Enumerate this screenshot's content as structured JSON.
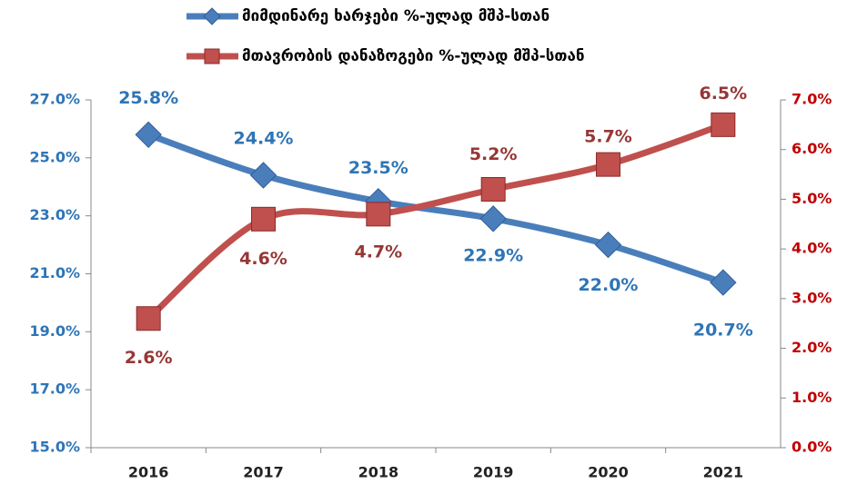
{
  "chart_data": {
    "type": "line",
    "categories": [
      "2016",
      "2017",
      "2018",
      "2019",
      "2020",
      "2021"
    ],
    "series": [
      {
        "name": "მიმდინარე ხარჯები %-ულად მშპ-სთან",
        "color": "#4a7ebb",
        "marker": "diamond",
        "values": [
          25.8,
          24.4,
          23.5,
          22.9,
          22.0,
          20.7
        ],
        "value_labels": [
          "25.8%",
          "24.4%",
          "23.5%",
          "22.9%",
          "22.0%",
          "20.7%"
        ]
      },
      {
        "name": "მთავრობის დანაზოგები %-ულად მშპ-სთან",
        "color": "#c0504d",
        "marker": "square",
        "axis": "y2",
        "values": [
          2.6,
          4.6,
          4.7,
          5.2,
          5.7,
          6.5
        ],
        "value_labels": [
          "2.6%",
          "4.6%",
          "4.7%",
          "5.2%",
          "5.7%",
          "6.5%"
        ]
      }
    ],
    "ylim": [
      15,
      27
    ],
    "yticks": [
      {
        "value": 15,
        "label": "15.0%"
      },
      {
        "value": 17,
        "label": "17.0%"
      },
      {
        "value": 19,
        "label": "19.0%"
      },
      {
        "value": 21,
        "label": "21.0%"
      },
      {
        "value": 23,
        "label": "23.0%"
      },
      {
        "value": 25,
        "label": "25.0%"
      },
      {
        "value": 27,
        "label": "27.0%"
      }
    ],
    "y2lim": [
      0,
      7
    ],
    "y2ticks": [
      {
        "value": 0,
        "label": "0.0%"
      },
      {
        "value": 1,
        "label": "1.0%"
      },
      {
        "value": 2,
        "label": "2.0%"
      },
      {
        "value": 3,
        "label": "3.0%"
      },
      {
        "value": 4,
        "label": "4.0%"
      },
      {
        "value": 5,
        "label": "5.0%"
      },
      {
        "value": 6,
        "label": "6.0%"
      },
      {
        "value": 7,
        "label": "7.0%"
      }
    ],
    "legend": "top"
  }
}
